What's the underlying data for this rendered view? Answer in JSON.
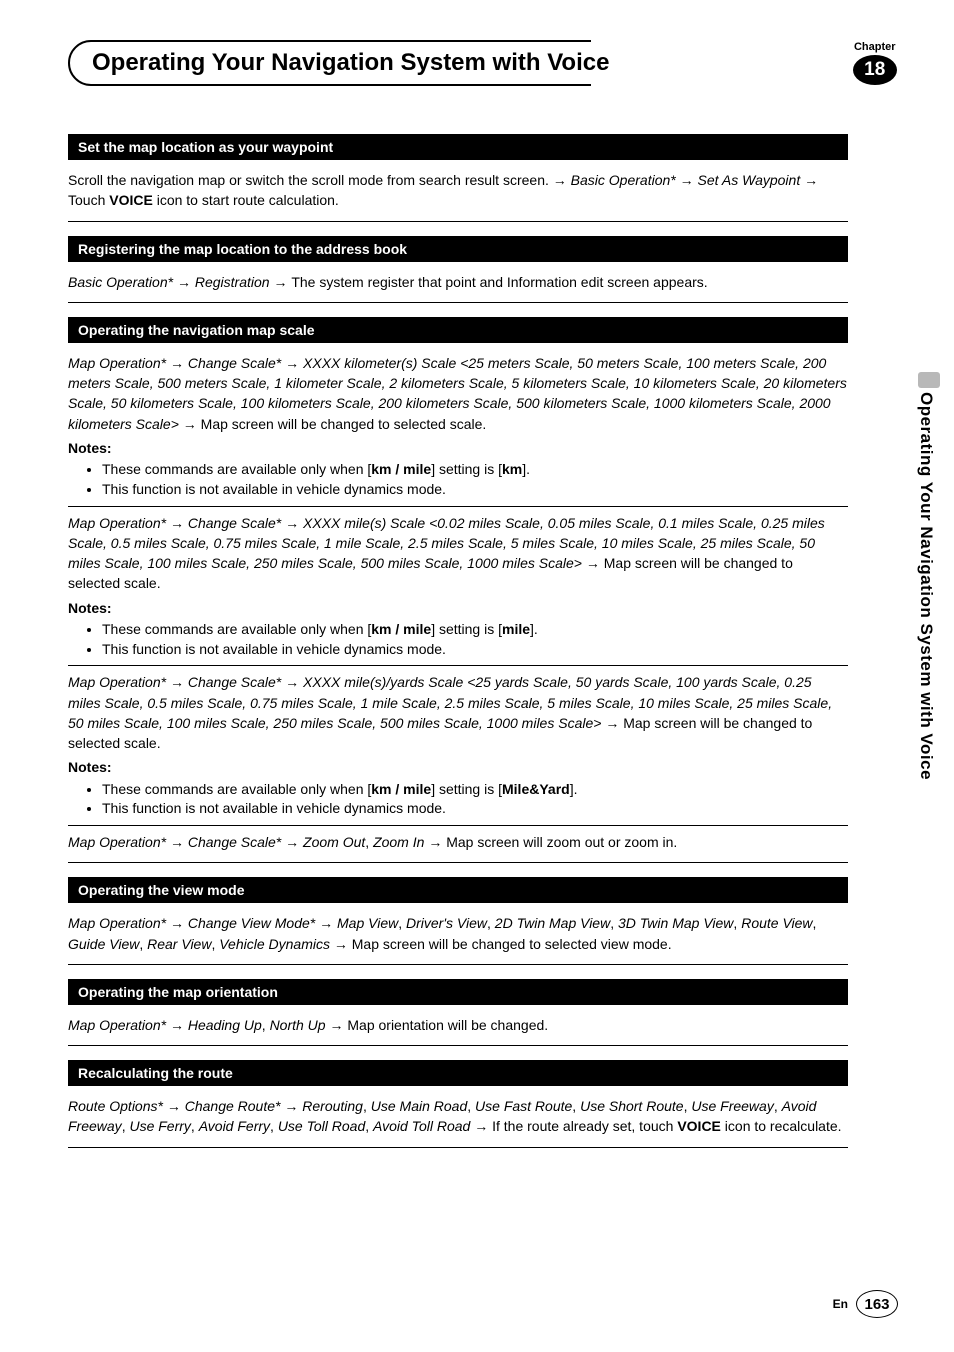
{
  "header": {
    "title": "Operating Your Navigation System with Voice",
    "chapter_label": "Chapter",
    "chapter_number": "18"
  },
  "side_tab_text": "Operating Your Navigation System with Voice",
  "sections": [
    {
      "heading": "Set the map location as your waypoint",
      "parts": [
        {
          "type": "p",
          "runs": [
            {
              "t": "Scroll the navigation map or switch the scroll mode from search result screen. "
            },
            {
              "t": "→ ",
              "cls": "arrow"
            },
            {
              "t": "Basic Operation* ",
              "cls": "italic"
            },
            {
              "t": "→ ",
              "cls": "arrow"
            },
            {
              "t": "Set As Waypoint ",
              "cls": "italic"
            },
            {
              "t": "→ ",
              "cls": "arrow"
            },
            {
              "t": "Touch "
            },
            {
              "t": "VOICE",
              "cls": "bold"
            },
            {
              "t": " icon to start route calculation."
            }
          ]
        }
      ]
    },
    {
      "heading": "Registering the map location to the address book",
      "parts": [
        {
          "type": "p",
          "runs": [
            {
              "t": "Basic Operation* ",
              "cls": "italic"
            },
            {
              "t": "→ ",
              "cls": "arrow"
            },
            {
              "t": "Registration ",
              "cls": "italic"
            },
            {
              "t": "→ ",
              "cls": "arrow"
            },
            {
              "t": "The system register that point and Information edit screen appears."
            }
          ]
        }
      ]
    },
    {
      "heading": "Operating the navigation map scale",
      "parts": [
        {
          "type": "p",
          "runs": [
            {
              "t": "Map Operation* ",
              "cls": "italic"
            },
            {
              "t": "→ ",
              "cls": "arrow"
            },
            {
              "t": "Change Scale* ",
              "cls": "italic"
            },
            {
              "t": "→ ",
              "cls": "arrow"
            },
            {
              "t": "XXXX kilometer(s) Scale <25 meters Scale, 50 meters Scale, 100 meters Scale, 200 meters Scale, 500 meters Scale, 1 kilometer Scale, 2 kilometers Scale, 5 kilometers Scale, 10 kilometers Scale, 20 kilometers Scale, 50 kilometers Scale, 100 kilometers Scale, 200 kilometers Scale, 500 kilometers Scale, 1000 kilometers Scale, 2000 kilometers Scale> ",
              "cls": "italic"
            },
            {
              "t": "→ ",
              "cls": "arrow"
            },
            {
              "t": "Map screen will be changed to selected scale."
            }
          ]
        },
        {
          "type": "notes_label",
          "text": "Notes:"
        },
        {
          "type": "ul",
          "items": [
            [
              {
                "t": "These commands are available only when ["
              },
              {
                "t": "km / mile",
                "cls": "bold"
              },
              {
                "t": "] setting is ["
              },
              {
                "t": "km",
                "cls": "bold"
              },
              {
                "t": "]."
              }
            ],
            [
              {
                "t": "This function is not available in vehicle dynamics mode."
              }
            ]
          ]
        },
        {
          "type": "divider"
        },
        {
          "type": "p",
          "runs": [
            {
              "t": "Map Operation* ",
              "cls": "italic"
            },
            {
              "t": "→ ",
              "cls": "arrow"
            },
            {
              "t": "Change Scale* ",
              "cls": "italic"
            },
            {
              "t": "→ ",
              "cls": "arrow"
            },
            {
              "t": "XXXX mile(s) Scale <0.02 miles Scale, 0.05 miles Scale, 0.1 miles Scale, 0.25 miles Scale, 0.5 miles Scale, 0.75 miles Scale, 1 mile Scale, 2.5 miles Scale, 5 miles Scale, 10 miles Scale, 25 miles Scale, 50 miles Scale, 100 miles Scale, 250 miles Scale, 500 miles Scale, 1000 miles Scale> ",
              "cls": "italic"
            },
            {
              "t": "→ ",
              "cls": "arrow"
            },
            {
              "t": "Map screen will be changed to selected scale."
            }
          ]
        },
        {
          "type": "notes_label",
          "text": "Notes:"
        },
        {
          "type": "ul",
          "items": [
            [
              {
                "t": "These commands are available only when ["
              },
              {
                "t": "km / mile",
                "cls": "bold"
              },
              {
                "t": "] setting is ["
              },
              {
                "t": "mile",
                "cls": "bold"
              },
              {
                "t": "]."
              }
            ],
            [
              {
                "t": "This function is not available in vehicle dynamics mode."
              }
            ]
          ]
        },
        {
          "type": "divider"
        },
        {
          "type": "p",
          "runs": [
            {
              "t": "Map Operation* ",
              "cls": "italic"
            },
            {
              "t": "→ ",
              "cls": "arrow"
            },
            {
              "t": "Change Scale* ",
              "cls": "italic"
            },
            {
              "t": "→ ",
              "cls": "arrow"
            },
            {
              "t": "XXXX mile(s)/yards Scale <25 yards Scale, 50 yards Scale, 100 yards Scale, 0.25 miles Scale, 0.5 miles Scale, 0.75 miles Scale, 1 mile Scale, 2.5 miles Scale, 5 miles Scale, 10 miles Scale, 25 miles Scale, 50 miles Scale, 100 miles Scale, 250 miles Scale, 500 miles Scale, 1000 miles Scale> ",
              "cls": "italic"
            },
            {
              "t": "→ ",
              "cls": "arrow"
            },
            {
              "t": "Map screen will be changed to selected scale."
            }
          ]
        },
        {
          "type": "notes_label",
          "text": "Notes:"
        },
        {
          "type": "ul",
          "items": [
            [
              {
                "t": "These commands are available only when ["
              },
              {
                "t": "km / mile",
                "cls": "bold"
              },
              {
                "t": "] setting is ["
              },
              {
                "t": "Mile&Yard",
                "cls": "bold"
              },
              {
                "t": "]."
              }
            ],
            [
              {
                "t": "This function is not available in vehicle dynamics mode."
              }
            ]
          ]
        },
        {
          "type": "divider"
        },
        {
          "type": "p",
          "runs": [
            {
              "t": "Map Operation* ",
              "cls": "italic"
            },
            {
              "t": "→ ",
              "cls": "arrow"
            },
            {
              "t": "Change Scale* ",
              "cls": "italic"
            },
            {
              "t": "→ ",
              "cls": "arrow"
            },
            {
              "t": "Zoom Out",
              "cls": "italic"
            },
            {
              "t": ", "
            },
            {
              "t": "Zoom In ",
              "cls": "italic"
            },
            {
              "t": "→ ",
              "cls": "arrow"
            },
            {
              "t": "Map screen will zoom out or zoom in."
            }
          ]
        }
      ]
    },
    {
      "heading": "Operating the view mode",
      "parts": [
        {
          "type": "p",
          "runs": [
            {
              "t": "Map Operation* ",
              "cls": "italic"
            },
            {
              "t": "→ ",
              "cls": "arrow"
            },
            {
              "t": "Change View Mode* ",
              "cls": "italic"
            },
            {
              "t": "→ ",
              "cls": "arrow"
            },
            {
              "t": "Map View",
              "cls": "italic"
            },
            {
              "t": ", "
            },
            {
              "t": "Driver's View",
              "cls": "italic"
            },
            {
              "t": ", "
            },
            {
              "t": "2D Twin Map View",
              "cls": "italic"
            },
            {
              "t": ", "
            },
            {
              "t": "3D Twin Map View",
              "cls": "italic"
            },
            {
              "t": ", "
            },
            {
              "t": "Route View",
              "cls": "italic"
            },
            {
              "t": ", "
            },
            {
              "t": "Guide View",
              "cls": "italic"
            },
            {
              "t": ", "
            },
            {
              "t": "Rear View",
              "cls": "italic"
            },
            {
              "t": ", "
            },
            {
              "t": "Vehicle Dynamics ",
              "cls": "italic"
            },
            {
              "t": "→ ",
              "cls": "arrow"
            },
            {
              "t": "Map screen will be changed to selected view mode."
            }
          ]
        }
      ]
    },
    {
      "heading": "Operating the map orientation",
      "parts": [
        {
          "type": "p",
          "runs": [
            {
              "t": "Map Operation* ",
              "cls": "italic"
            },
            {
              "t": "→ ",
              "cls": "arrow"
            },
            {
              "t": "Heading Up",
              "cls": "italic"
            },
            {
              "t": ", "
            },
            {
              "t": "North Up ",
              "cls": "italic"
            },
            {
              "t": "→ ",
              "cls": "arrow"
            },
            {
              "t": "Map orientation will be changed."
            }
          ]
        }
      ]
    },
    {
      "heading": "Recalculating the route",
      "parts": [
        {
          "type": "p",
          "runs": [
            {
              "t": "Route Options* ",
              "cls": "italic"
            },
            {
              "t": "→ ",
              "cls": "arrow"
            },
            {
              "t": "Change Route* ",
              "cls": "italic"
            },
            {
              "t": "→ ",
              "cls": "arrow"
            },
            {
              "t": "Rerouting",
              "cls": "italic"
            },
            {
              "t": ", "
            },
            {
              "t": "Use Main Road",
              "cls": "italic"
            },
            {
              "t": ", "
            },
            {
              "t": "Use Fast Route",
              "cls": "italic"
            },
            {
              "t": ", "
            },
            {
              "t": "Use Short Route",
              "cls": "italic"
            },
            {
              "t": ", "
            },
            {
              "t": "Use Freeway",
              "cls": "italic"
            },
            {
              "t": ", "
            },
            {
              "t": "Avoid Freeway",
              "cls": "italic"
            },
            {
              "t": ", "
            },
            {
              "t": "Use Ferry",
              "cls": "italic"
            },
            {
              "t": ", "
            },
            {
              "t": "Avoid Ferry",
              "cls": "italic"
            },
            {
              "t": ", "
            },
            {
              "t": "Use Toll Road",
              "cls": "italic"
            },
            {
              "t": ", "
            },
            {
              "t": "Avoid Toll Road ",
              "cls": "italic"
            },
            {
              "t": "→ ",
              "cls": "arrow"
            },
            {
              "t": "If the route already set, touch "
            },
            {
              "t": "VOICE",
              "cls": "bold"
            },
            {
              "t": " icon to recalculate."
            }
          ]
        }
      ]
    }
  ],
  "footer": {
    "lang": "En",
    "page": "163"
  }
}
